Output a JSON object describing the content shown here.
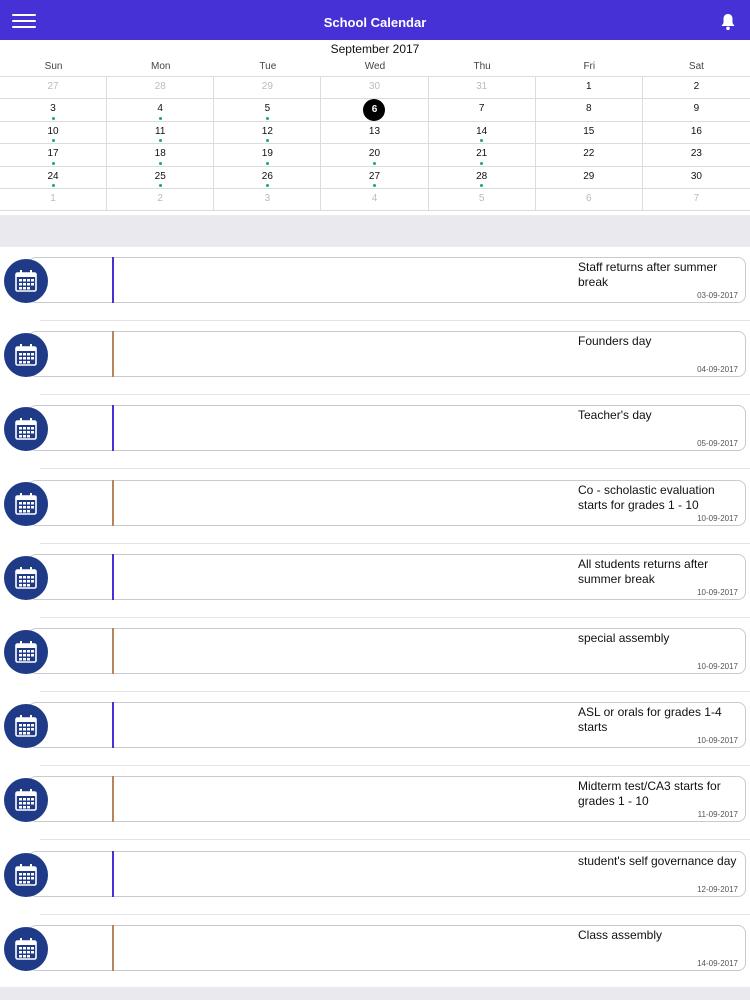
{
  "header": {
    "title": "School Calendar",
    "menu_icon": "hamburger-menu-icon",
    "bell_icon": "bell-icon",
    "accent_color": "#4631d6"
  },
  "calendar": {
    "month_label": "September 2017",
    "weekdays": [
      "Sun",
      "Mon",
      "Tue",
      "Wed",
      "Thu",
      "Fri",
      "Sat"
    ],
    "selected_day": "6",
    "weeks": [
      [
        {
          "d": "27",
          "o": true
        },
        {
          "d": "28",
          "o": true
        },
        {
          "d": "29",
          "o": true
        },
        {
          "d": "30",
          "o": true
        },
        {
          "d": "31",
          "o": true
        },
        {
          "d": "1"
        },
        {
          "d": "2"
        }
      ],
      [
        {
          "d": "3",
          "e": true
        },
        {
          "d": "4",
          "e": true
        },
        {
          "d": "5",
          "e": true
        },
        {
          "d": "6",
          "s": true
        },
        {
          "d": "7"
        },
        {
          "d": "8"
        },
        {
          "d": "9"
        }
      ],
      [
        {
          "d": "10",
          "e": true
        },
        {
          "d": "11",
          "e": true
        },
        {
          "d": "12",
          "e": true
        },
        {
          "d": "13"
        },
        {
          "d": "14",
          "e": true
        },
        {
          "d": "15"
        },
        {
          "d": "16"
        }
      ],
      [
        {
          "d": "17",
          "e": true
        },
        {
          "d": "18",
          "e": true
        },
        {
          "d": "19",
          "e": true
        },
        {
          "d": "20",
          "e": true
        },
        {
          "d": "21",
          "e": true
        },
        {
          "d": "22"
        },
        {
          "d": "23"
        }
      ],
      [
        {
          "d": "24",
          "e": true
        },
        {
          "d": "25",
          "e": true
        },
        {
          "d": "26",
          "e": true
        },
        {
          "d": "27",
          "e": true
        },
        {
          "d": "28",
          "e": true
        },
        {
          "d": "29"
        },
        {
          "d": "30"
        }
      ],
      [
        {
          "d": "1",
          "o": true
        },
        {
          "d": "2",
          "o": true
        },
        {
          "d": "3",
          "o": true
        },
        {
          "d": "4",
          "o": true
        },
        {
          "d": "5",
          "o": true
        },
        {
          "d": "6",
          "o": true
        },
        {
          "d": "7",
          "o": true
        }
      ]
    ],
    "event_dot_color": "#1aa86b"
  },
  "events": [
    {
      "title": "Staff returns after summer break",
      "date": "03-09-2017",
      "accent": "#4631d6"
    },
    {
      "title": "Founders day",
      "date": "04-09-2017",
      "accent": "#b8855a"
    },
    {
      "title": "Teacher's day",
      "date": "05-09-2017",
      "accent": "#4631d6"
    },
    {
      "title": "Co - scholastic evaluation starts for grades 1 - 10",
      "date": "10-09-2017",
      "accent": "#b8855a"
    },
    {
      "title": "All students returns after summer break",
      "date": "10-09-2017",
      "accent": "#4631d6"
    },
    {
      "title": "special assembly",
      "date": "10-09-2017",
      "accent": "#b8855a"
    },
    {
      "title": "ASL or orals for grades 1-4 starts",
      "date": "10-09-2017",
      "accent": "#4631d6"
    },
    {
      "title": "Midterm test/CA3 starts for grades 1 - 10",
      "date": "11-09-2017",
      "accent": "#b8855a"
    },
    {
      "title": "student's self governance day",
      "date": "12-09-2017",
      "accent": "#4631d6"
    },
    {
      "title": "Class assembly",
      "date": "14-09-2017",
      "accent": "#b8855a"
    }
  ],
  "event_icon": "calendar-icon",
  "event_icon_color": "#1f3a87"
}
